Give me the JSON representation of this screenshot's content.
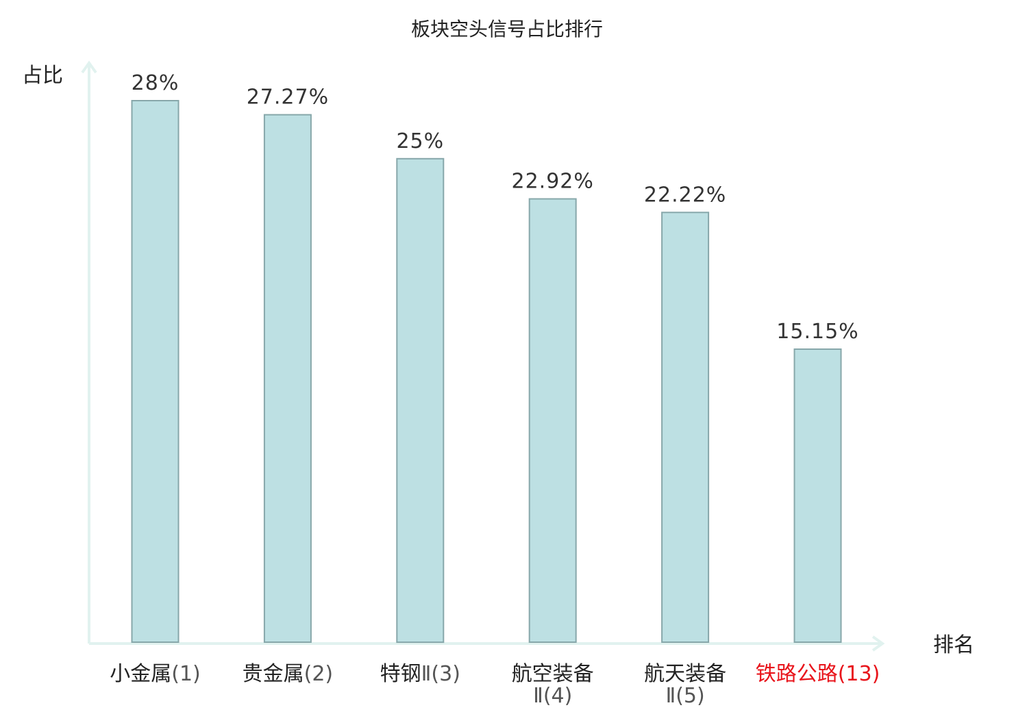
{
  "chart_data": {
    "type": "bar",
    "title": "板块空头信号占比排行",
    "ylabel": "占比",
    "xlabel": "排名",
    "categories": [
      {
        "name": "小金属",
        "rank": "(1)",
        "highlight": false
      },
      {
        "name": "贵金属",
        "rank": "(2)",
        "highlight": false
      },
      {
        "name": "特钢",
        "rank": "Ⅱ(3)",
        "highlight": false
      },
      {
        "name": "航空装备",
        "rank": "Ⅱ(4)",
        "highlight": false
      },
      {
        "name": "航天装备",
        "rank": "Ⅱ(5)",
        "highlight": false
      },
      {
        "name": "铁路公路",
        "rank": "(13)",
        "highlight": true
      }
    ],
    "values": [
      28,
      27.27,
      25,
      22.92,
      22.22,
      15.15
    ],
    "value_labels": [
      "28%",
      "27.27%",
      "25%",
      "22.92%",
      "22.22%",
      "15.15%"
    ],
    "ylim": [
      0,
      30
    ],
    "grid": false,
    "colors": {
      "bar_fill": "#bde0e3",
      "bar_stroke": "#87a7aa",
      "axis": "#e1f2ef",
      "text": "#222222",
      "rank_text": "#555555",
      "highlight": "#e8141b"
    }
  }
}
